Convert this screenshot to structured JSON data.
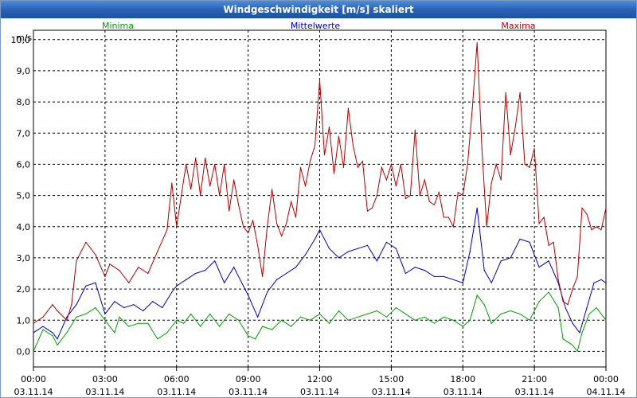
{
  "window": {
    "title": "Windgeschwindigkeit [m/s] skaliert"
  },
  "chart_data": {
    "type": "line",
    "title": "Windgeschwindigkeit [m/s] skaliert",
    "ylabel": "m/s",
    "ylim": [
      -0.5,
      10.3
    ],
    "yticks": [
      "0,0",
      "1,0",
      "2,0",
      "3,0",
      "4,0",
      "5,0",
      "6,0",
      "7,0",
      "8,0",
      "9,0",
      "10,0"
    ],
    "x_ticks": [
      {
        "time": "00:00",
        "date": "03.11.14"
      },
      {
        "time": "03:00",
        "date": "03.11.14"
      },
      {
        "time": "06:00",
        "date": "03.11.14"
      },
      {
        "time": "09:00",
        "date": "03.11.14"
      },
      {
        "time": "12:00",
        "date": "03.11.14"
      },
      {
        "time": "15:00",
        "date": "03.11.14"
      },
      {
        "time": "18:00",
        "date": "03.11.14"
      },
      {
        "time": "21:00",
        "date": "03.11.14"
      },
      {
        "time": "00:00",
        "date": "04.11.14"
      }
    ],
    "xlim_hours": [
      0,
      24
    ],
    "grid": true,
    "series": [
      {
        "name": "Minima",
        "color": "#00a000",
        "x": [
          0,
          0.4,
          0.8,
          1.0,
          1.4,
          1.8,
          2.2,
          2.6,
          3.0,
          3.4,
          3.6,
          4.0,
          4.4,
          4.8,
          5.2,
          5.6,
          6.0,
          6.3,
          6.6,
          7.0,
          7.4,
          7.8,
          8.2,
          8.6,
          9.0,
          9.3,
          9.6,
          10.0,
          10.4,
          10.8,
          11.2,
          11.6,
          12.0,
          12.4,
          12.8,
          13.2,
          13.6,
          14.0,
          14.4,
          14.8,
          15.2,
          15.6,
          16.0,
          16.4,
          16.8,
          17.2,
          17.6,
          18.0,
          18.3,
          18.6,
          18.9,
          19.2,
          19.6,
          20.0,
          20.4,
          20.8,
          21.2,
          21.6,
          22.0,
          22.2,
          22.4,
          22.6,
          22.8,
          23.0,
          23.3,
          23.6,
          23.9,
          24.0
        ],
        "y": [
          0.0,
          0.7,
          0.5,
          0.2,
          0.6,
          1.1,
          1.2,
          1.4,
          1.0,
          0.6,
          1.1,
          0.8,
          0.9,
          0.9,
          0.4,
          0.6,
          1.0,
          0.9,
          1.2,
          0.8,
          1.2,
          0.8,
          1.2,
          1.0,
          0.5,
          0.4,
          0.8,
          0.7,
          1.0,
          0.8,
          1.1,
          1.0,
          1.2,
          0.9,
          1.3,
          1.0,
          1.1,
          1.2,
          1.3,
          1.1,
          1.4,
          1.2,
          1.0,
          1.1,
          0.9,
          1.1,
          1.0,
          0.8,
          1.0,
          1.8,
          1.5,
          0.9,
          1.2,
          1.3,
          1.2,
          1.0,
          1.6,
          1.9,
          1.4,
          0.4,
          0.3,
          0.2,
          0.0,
          0.6,
          1.2,
          1.4,
          1.1,
          1.0
        ]
      },
      {
        "name": "Mittelwerte",
        "color": "#0000c0",
        "x": [
          0,
          0.4,
          0.8,
          1.0,
          1.4,
          1.8,
          2.2,
          2.6,
          3.0,
          3.4,
          3.8,
          4.2,
          4.6,
          5.0,
          5.4,
          5.8,
          6.0,
          6.4,
          6.8,
          7.2,
          7.6,
          8.0,
          8.4,
          8.8,
          9.0,
          9.4,
          9.8,
          10.2,
          10.6,
          11.0,
          11.4,
          11.8,
          12.0,
          12.4,
          12.8,
          13.2,
          13.6,
          14.0,
          14.4,
          14.8,
          15.2,
          15.6,
          16.0,
          16.4,
          16.8,
          17.2,
          17.6,
          18.0,
          18.3,
          18.6,
          18.9,
          19.2,
          19.6,
          20.0,
          20.4,
          20.8,
          21.2,
          21.6,
          22.0,
          22.3,
          22.6,
          22.9,
          23.2,
          23.5,
          23.8,
          24.0
        ],
        "y": [
          0.6,
          0.8,
          0.6,
          0.4,
          1.1,
          1.5,
          2.1,
          2.2,
          1.2,
          1.6,
          1.4,
          1.5,
          1.3,
          1.6,
          1.4,
          1.9,
          2.1,
          2.3,
          2.5,
          2.6,
          2.9,
          2.2,
          2.7,
          2.1,
          1.8,
          1.1,
          1.9,
          2.3,
          2.5,
          2.7,
          3.1,
          3.6,
          3.9,
          3.3,
          3.0,
          3.2,
          3.3,
          3.4,
          2.9,
          3.5,
          3.3,
          2.5,
          2.7,
          2.6,
          2.4,
          2.4,
          2.3,
          2.2,
          3.2,
          4.6,
          2.6,
          2.2,
          2.9,
          3.0,
          3.6,
          3.5,
          2.7,
          2.9,
          2.2,
          1.4,
          0.9,
          0.6,
          1.4,
          2.2,
          2.3,
          2.2
        ]
      },
      {
        "name": "Maxima",
        "color": "#b00000",
        "x": [
          0,
          0.4,
          0.8,
          1.0,
          1.4,
          1.6,
          1.8,
          2.2,
          2.6,
          3.0,
          3.2,
          3.6,
          4.0,
          4.4,
          4.8,
          5.2,
          5.6,
          5.8,
          6.0,
          6.2,
          6.4,
          6.6,
          6.8,
          7.0,
          7.2,
          7.4,
          7.6,
          7.8,
          8.0,
          8.2,
          8.4,
          8.6,
          8.8,
          9.0,
          9.2,
          9.4,
          9.6,
          9.8,
          10.0,
          10.2,
          10.4,
          10.6,
          10.8,
          11.0,
          11.2,
          11.4,
          11.6,
          11.8,
          12.0,
          12.2,
          12.4,
          12.6,
          12.8,
          13.0,
          13.2,
          13.4,
          13.6,
          13.8,
          14.0,
          14.2,
          14.4,
          14.6,
          14.8,
          15.0,
          15.2,
          15.4,
          15.6,
          15.8,
          16.0,
          16.2,
          16.4,
          16.6,
          16.8,
          17.0,
          17.2,
          17.4,
          17.6,
          17.8,
          18.0,
          18.2,
          18.4,
          18.6,
          18.8,
          19.0,
          19.2,
          19.4,
          19.6,
          19.8,
          20.0,
          20.2,
          20.4,
          20.6,
          20.8,
          21.0,
          21.2,
          21.4,
          21.6,
          21.8,
          22.0,
          22.2,
          22.4,
          22.6,
          22.8,
          23.0,
          23.2,
          23.4,
          23.6,
          23.8,
          24.0
        ],
        "y": [
          0.9,
          1.1,
          1.5,
          1.3,
          1.0,
          1.5,
          2.9,
          3.5,
          3.1,
          2.4,
          2.8,
          2.6,
          2.2,
          2.7,
          2.5,
          3.2,
          3.9,
          5.4,
          4.0,
          5.0,
          6.0,
          5.2,
          6.2,
          5.0,
          6.2,
          5.3,
          6.0,
          5.0,
          6.0,
          4.5,
          5.5,
          4.7,
          4.0,
          3.8,
          4.2,
          3.4,
          2.4,
          4.0,
          5.2,
          4.1,
          3.7,
          4.1,
          4.8,
          4.3,
          5.9,
          5.3,
          6.1,
          6.6,
          8.7,
          6.3,
          7.2,
          5.7,
          6.9,
          5.9,
          7.8,
          6.6,
          5.9,
          6.1,
          4.5,
          4.6,
          5.0,
          5.9,
          5.5,
          6.0,
          5.3,
          6.0,
          4.9,
          5.0,
          7.1,
          5.0,
          5.5,
          4.8,
          4.7,
          5.1,
          4.3,
          4.3,
          4.0,
          5.1,
          5.0,
          6.0,
          7.8,
          9.9,
          6.5,
          4.0,
          5.4,
          6.0,
          5.5,
          8.3,
          6.3,
          7.2,
          8.3,
          6.0,
          5.9,
          6.5,
          4.1,
          4.3,
          3.4,
          3.5,
          2.3,
          1.6,
          1.5,
          2.0,
          2.4,
          4.6,
          4.4,
          3.9,
          4.0,
          3.9,
          4.6
        ]
      }
    ]
  }
}
